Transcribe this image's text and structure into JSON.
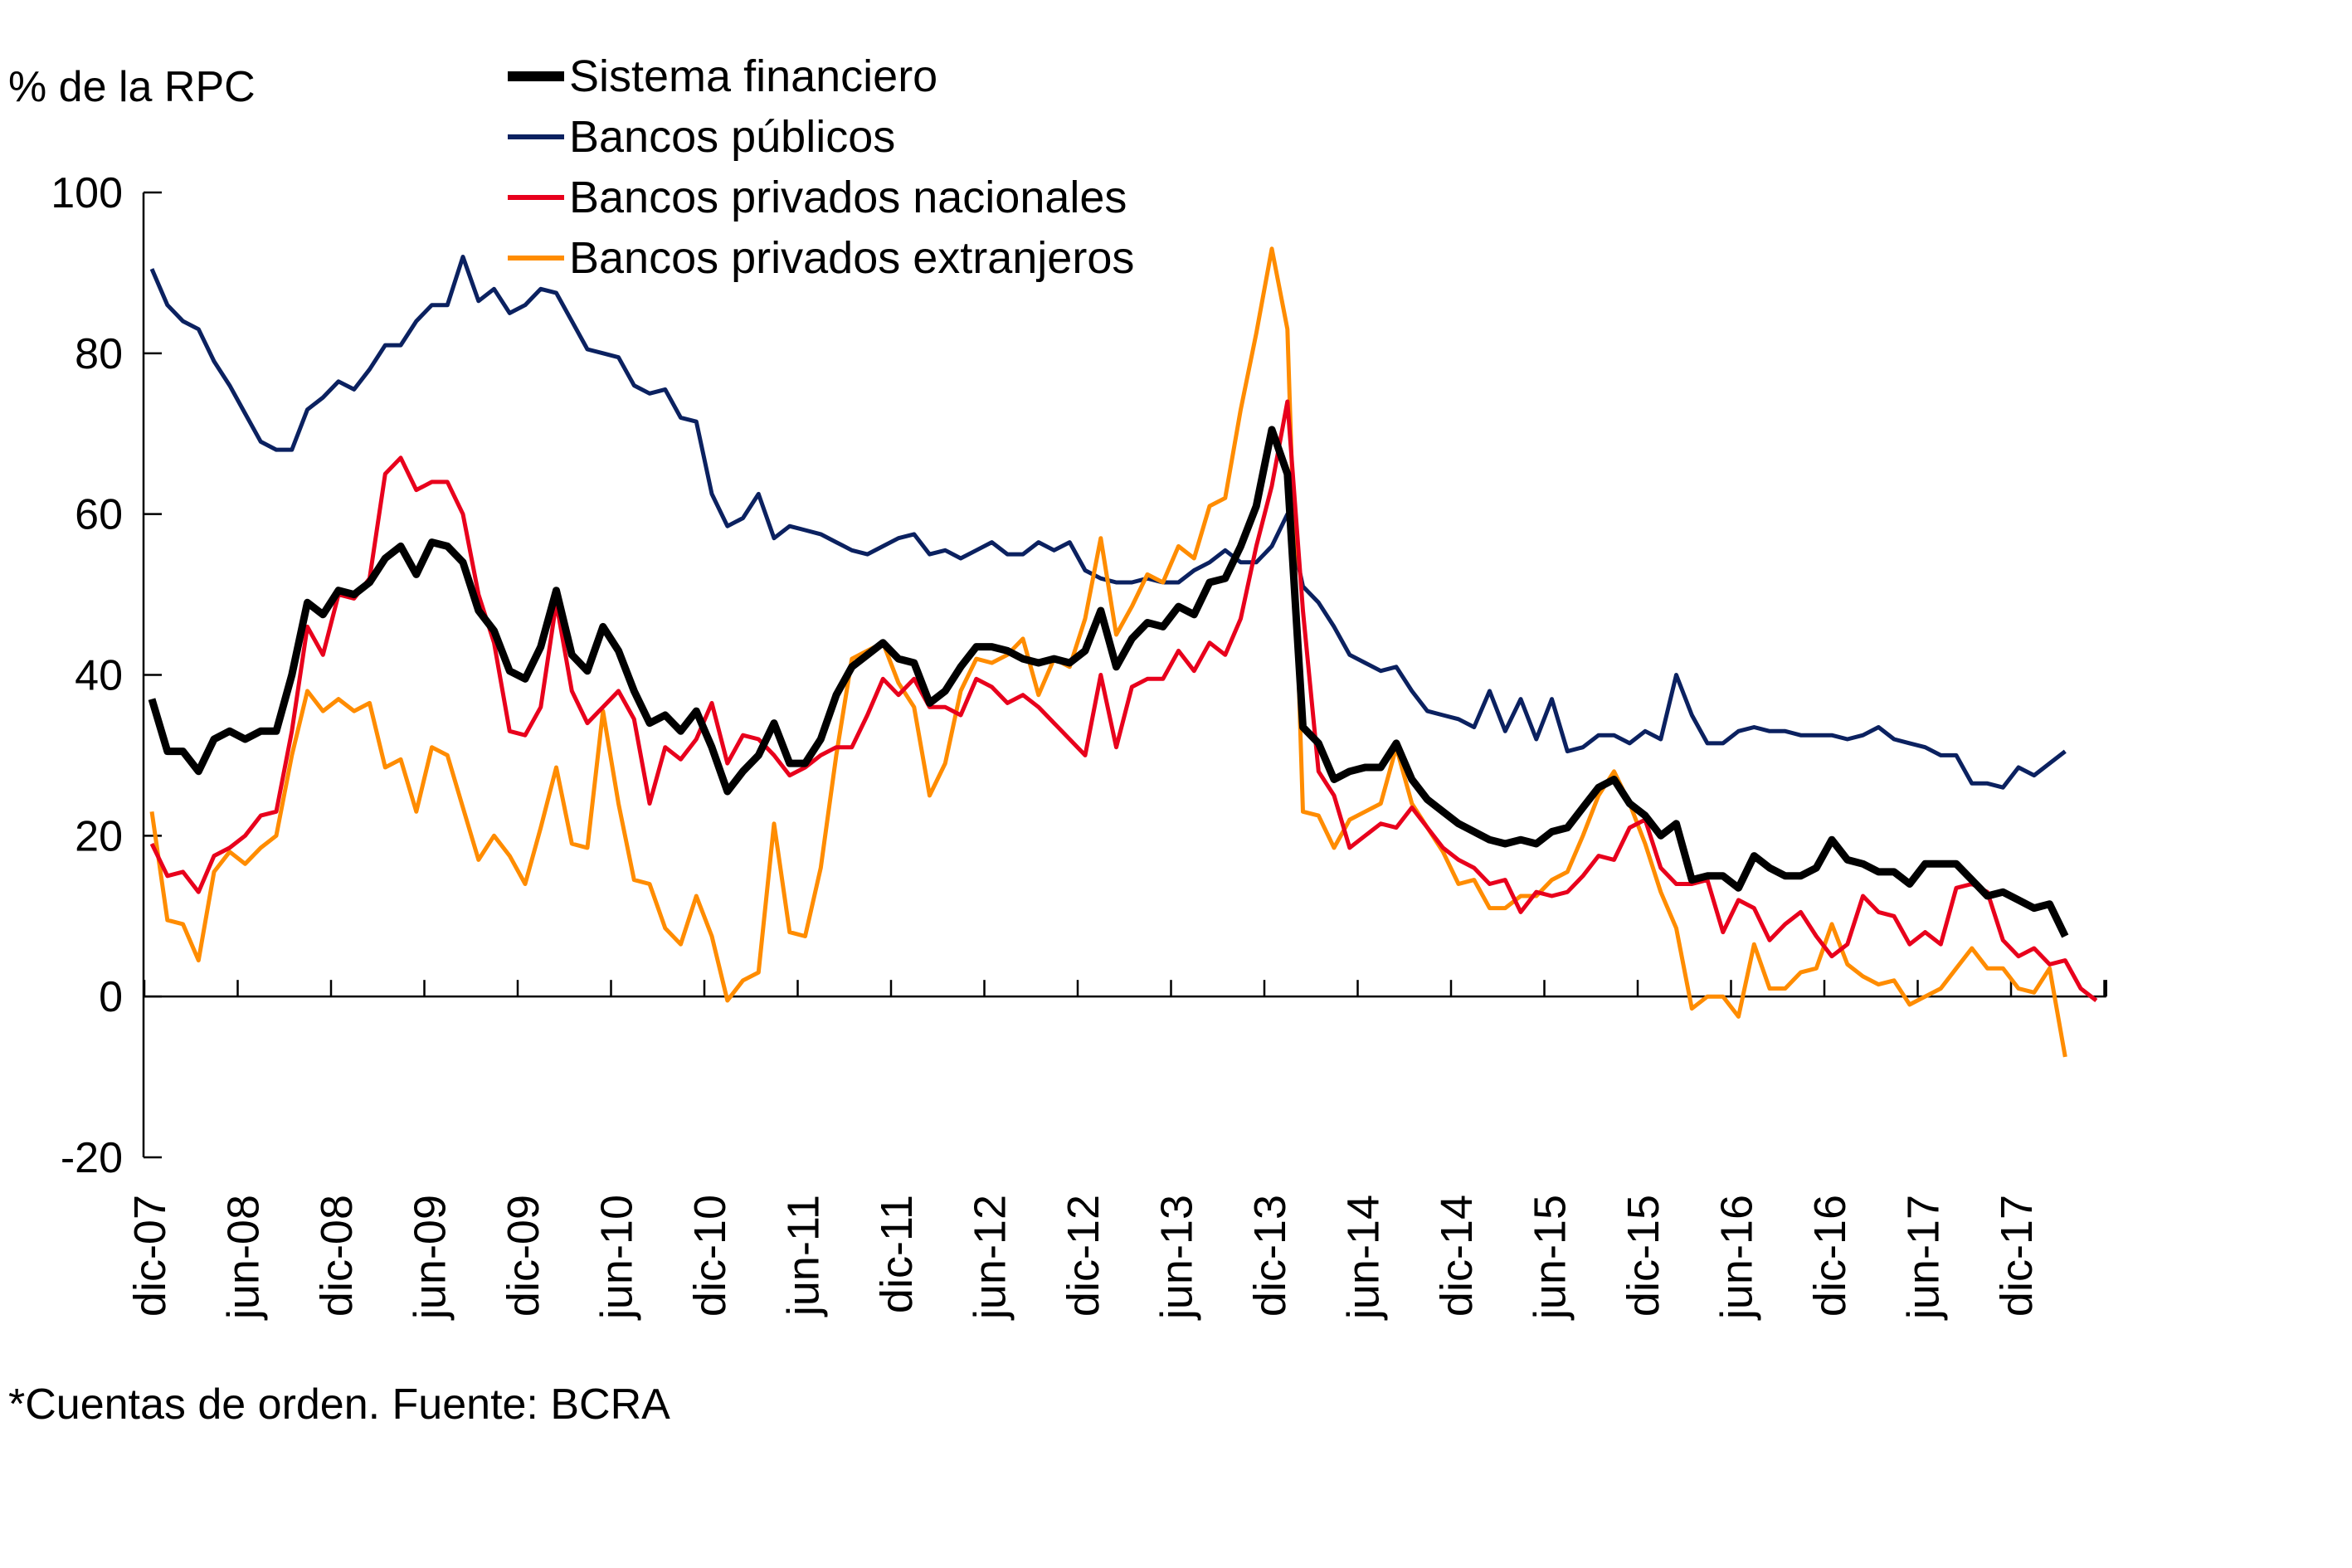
{
  "chart_data": {
    "type": "line",
    "title": "",
    "ylabel": "% de la RPC",
    "xlabel": "",
    "ylim": [
      -20,
      100
    ],
    "yticks": [
      -20,
      0,
      20,
      40,
      60,
      80,
      100
    ],
    "grid": false,
    "legend_position": "top-center",
    "footnote": "*Cuentas de orden. Fuente: BCRA",
    "x_start": "dic-07",
    "x_tick_labels": [
      "dic-07",
      "jun-08",
      "dic-08",
      "jun-09",
      "dic-09",
      "jun-10",
      "dic-10",
      "jun-11",
      "dic-11",
      "jun-12",
      "dic-12",
      "jun-13",
      "dic-13",
      "jun-14",
      "dic-14",
      "jun-15",
      "dic-15",
      "jun-16",
      "dic-16",
      "jun-17",
      "dic-17"
    ],
    "x_tick_every_months": 6,
    "series": [
      {
        "name": "Sistema financiero",
        "color": "#000000",
        "values": [
          37,
          30.5,
          30.5,
          28,
          32,
          33,
          32,
          33,
          33,
          40,
          49,
          47.5,
          50.5,
          50,
          51.5,
          54.5,
          56,
          52.5,
          56.5,
          56,
          54,
          48,
          45.5,
          40.5,
          39.5,
          43.5,
          50.5,
          42.5,
          40.5,
          46,
          43,
          38,
          34,
          35,
          33,
          35.5,
          31,
          25.5,
          28,
          30,
          34,
          29,
          29,
          32,
          37.5,
          41,
          42.5,
          44,
          42,
          41.5,
          36.5,
          38,
          41,
          43.5,
          43.5,
          43,
          42,
          41.5,
          42,
          41.5,
          43,
          48,
          41,
          44.5,
          46.5,
          46,
          48.5,
          47.5,
          51.5,
          52,
          56,
          61,
          70.5,
          65,
          33.5,
          31.5,
          27,
          28,
          28.5,
          28.5,
          31.5,
          27,
          24.5,
          23,
          21.5,
          20.5,
          19.5,
          19,
          19.5,
          19,
          20.5,
          21,
          23.5,
          26,
          27,
          24,
          22.5,
          20,
          21.5,
          14.5,
          15,
          15,
          13.5,
          17.5,
          16,
          15,
          15,
          16,
          19.5,
          17,
          16.5,
          15.5,
          15.5,
          14,
          16.5,
          16.5,
          16.5,
          14.5,
          12.5,
          13,
          12,
          11,
          11.5,
          7.5
        ]
      },
      {
        "name": "Bancos públicos",
        "color": "#0b2160",
        "values": [
          90.5,
          86,
          84,
          83,
          79,
          76,
          72.5,
          69,
          68,
          68,
          73,
          74.5,
          76.5,
          75.5,
          78,
          81,
          81,
          84,
          86,
          86,
          92,
          86.5,
          88,
          85,
          86,
          88,
          87.5,
          84,
          80.5,
          80,
          79.5,
          76,
          75,
          75.5,
          72,
          71.5,
          62.5,
          58.5,
          59.5,
          62.5,
          57,
          58.5,
          58,
          57.5,
          56.5,
          55.5,
          55,
          56,
          57,
          57.5,
          55,
          55.5,
          54.5,
          55.5,
          56.5,
          55,
          55,
          56.5,
          55.5,
          56.5,
          53,
          52,
          51.5,
          51.5,
          52,
          51.5,
          51.5,
          53,
          54,
          55.5,
          54,
          54,
          56,
          60,
          51,
          49,
          46,
          42.5,
          41.5,
          40.5,
          41,
          38,
          35.5,
          35,
          34.5,
          33.5,
          38,
          33,
          37,
          32,
          37,
          30.5,
          31,
          32.5,
          32.5,
          31.5,
          33,
          32,
          40,
          35,
          31.5,
          31.5,
          33,
          33.5,
          33,
          33,
          32.5,
          32.5,
          32.5,
          32,
          32.5,
          33.5,
          32,
          31.5,
          31,
          30,
          30,
          26.5,
          26.5,
          26,
          28.5,
          27.5,
          29,
          30.5
        ]
      },
      {
        "name": "Bancos privados nacionales",
        "color": "#e8001c",
        "values": [
          19,
          15,
          15.5,
          13,
          17.5,
          18.5,
          20,
          22.5,
          23,
          33,
          46,
          42.5,
          50,
          49.5,
          52,
          65,
          67,
          63,
          64,
          64,
          60,
          50,
          44,
          33,
          32.5,
          36,
          49,
          38,
          34,
          36,
          38,
          34.5,
          24,
          31,
          29.5,
          32,
          36.5,
          29,
          32.5,
          32,
          30,
          27.5,
          28.5,
          30,
          31,
          31,
          35,
          39.5,
          37.5,
          39.5,
          36,
          36,
          35,
          39.5,
          38.5,
          36.5,
          37.5,
          36,
          34,
          32,
          30,
          40,
          31,
          38.5,
          39.5,
          39.5,
          43,
          40.5,
          44,
          42.5,
          47,
          56,
          63.5,
          74,
          48,
          28,
          25,
          18.5,
          20,
          21.5,
          21,
          23.5,
          21,
          18.5,
          17,
          16,
          14,
          14.5,
          10.5,
          13,
          12.5,
          13,
          15,
          17.5,
          17,
          21,
          22,
          16,
          14,
          14,
          14.5,
          8,
          12,
          11,
          7,
          9,
          10.5,
          7.5,
          5,
          6.5,
          12.5,
          10.5,
          10,
          6.5,
          8,
          6.5,
          13.5,
          14,
          13,
          7,
          5,
          6,
          4,
          4.5,
          1,
          -0.5
        ]
      },
      {
        "name": "Bancos privados extranjeros",
        "color": "#ff8c00",
        "values": [
          23,
          9.5,
          9,
          4.5,
          15.5,
          18,
          16.5,
          18.5,
          20,
          30,
          38,
          35.5,
          37,
          35.5,
          36.5,
          28.5,
          29.5,
          23,
          31,
          30,
          23.5,
          17,
          20,
          17.5,
          14,
          21,
          28.5,
          19,
          18.5,
          35.5,
          24,
          14.5,
          14,
          8.5,
          6.5,
          12.5,
          7.5,
          -0.5,
          2,
          3,
          21.5,
          8,
          7.5,
          16,
          30,
          42,
          43,
          44,
          39,
          36,
          25,
          29,
          38,
          42,
          41.5,
          42.5,
          44.5,
          37.5,
          42,
          41,
          47,
          57,
          45,
          48.5,
          52.5,
          51.5,
          56,
          54.5,
          61,
          62,
          73,
          82.5,
          93,
          83,
          23,
          22.5,
          18.5,
          22,
          23,
          24,
          31,
          24,
          21,
          18,
          14,
          14.5,
          11,
          11,
          12.5,
          12.5,
          14.5,
          15.5,
          20,
          25,
          28,
          24,
          19,
          13,
          8.5,
          -1.5,
          0,
          0,
          -2.5,
          6.5,
          1,
          1,
          3,
          3.5,
          9,
          4,
          2.5,
          1.5,
          2,
          -1,
          0,
          1,
          3.5,
          6,
          3.5,
          3.5,
          1,
          0.5,
          3.5,
          -7.5
        ]
      }
    ]
  }
}
